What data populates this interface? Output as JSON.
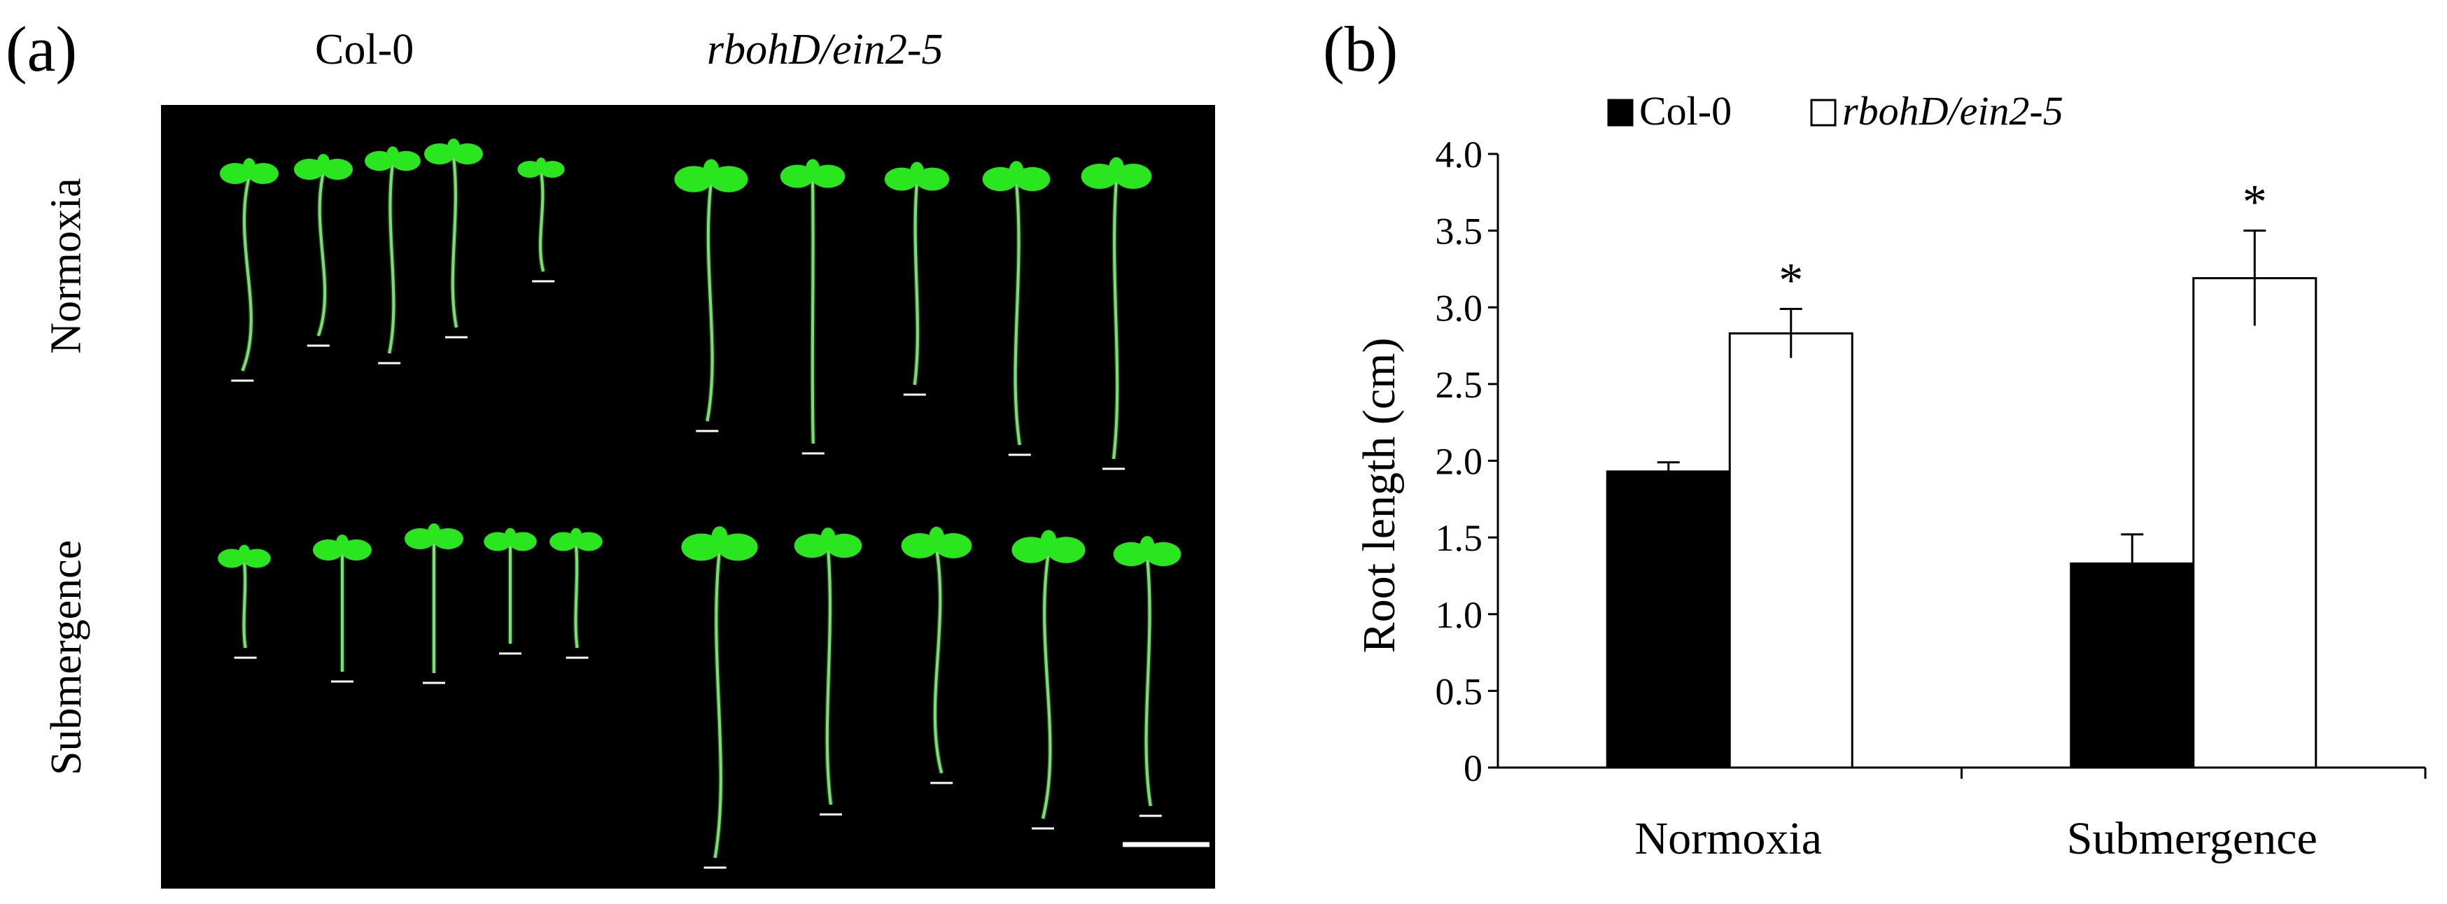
{
  "panel_a": {
    "label": "(a)",
    "col_labels": [
      "Col-0",
      "rbohD/ein2-5"
    ],
    "row_labels": [
      "Normoxia",
      "Submergence"
    ]
  },
  "panel_b": {
    "label": "(b)"
  },
  "colors": {
    "col0": "#000000",
    "mutant": "#ffffff",
    "seedling_leaf": "#29e61f",
    "seedling_root": "#d8f5d0",
    "photo_background": "#000000"
  },
  "chart_data": {
    "type": "bar",
    "categories": [
      "Normoxia",
      "Submergence"
    ],
    "series": [
      {
        "name": "Col-0",
        "values": [
          1.93,
          1.33
        ],
        "errors": [
          0.06,
          0.19
        ],
        "significant": [
          false,
          false
        ]
      },
      {
        "name": "rbohD/ein2-5",
        "values": [
          2.83,
          3.19
        ],
        "errors": [
          0.16,
          0.31
        ],
        "significant": [
          true,
          true
        ]
      }
    ],
    "significance_marker": "*",
    "ylabel": "Root  length (cm)",
    "xlabel": "",
    "ylim": [
      0,
      4.0
    ],
    "yticks": [
      "0",
      "0.5",
      "1.0",
      "1.5",
      "2.0",
      "2.5",
      "3.0",
      "3.5",
      "4.0"
    ],
    "legend_position": "top"
  }
}
